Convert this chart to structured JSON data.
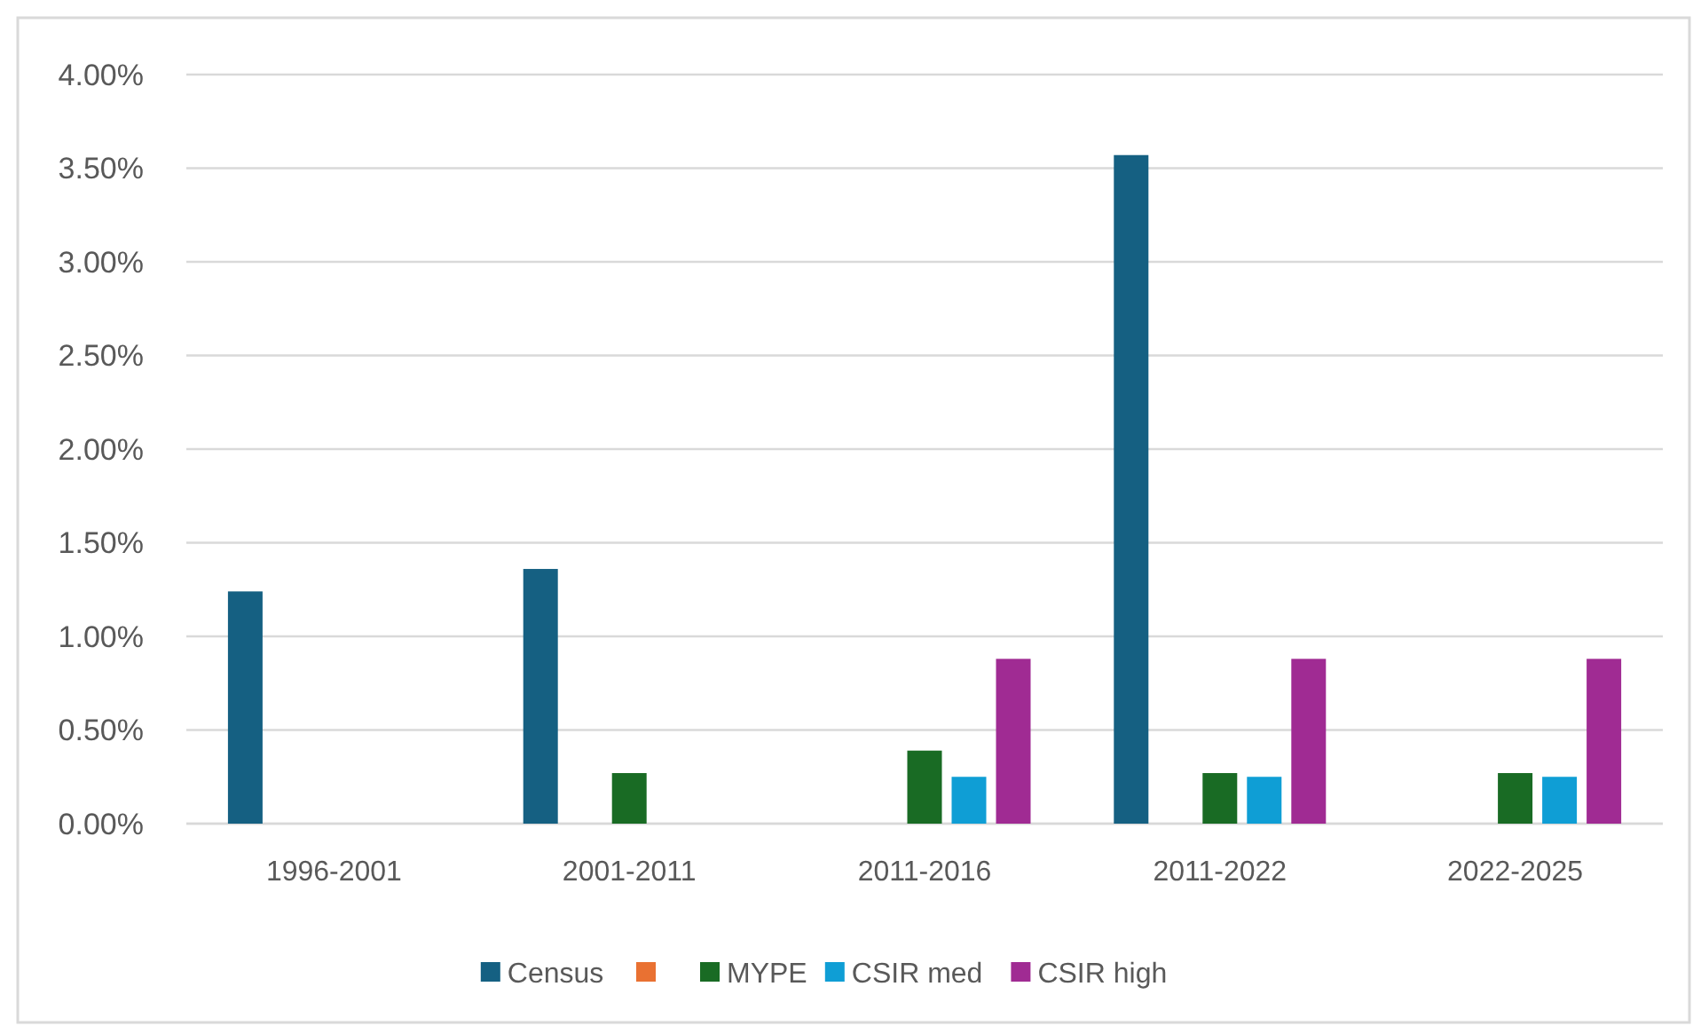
{
  "chart_data": {
    "type": "bar",
    "categories": [
      "1996-2001",
      "2001-2011",
      "2011-2016",
      "2011-2022",
      "2022-2025"
    ],
    "series": [
      {
        "name": "Census",
        "color": "#156082",
        "values": [
          1.24,
          1.36,
          null,
          3.57,
          null
        ]
      },
      {
        "color": "#e97132",
        "values": [
          null,
          null,
          null,
          null,
          null
        ]
      },
      {
        "name": "MYPE",
        "color": "#196b24",
        "values": [
          null,
          0.27,
          0.39,
          0.27,
          0.27
        ]
      },
      {
        "name": "CSIR med",
        "color": "#0f9ed5",
        "values": [
          null,
          null,
          0.25,
          0.25,
          0.25
        ]
      },
      {
        "name": "CSIR high",
        "color": "#a02b93",
        "values": [
          null,
          null,
          0.88,
          0.88,
          0.88
        ]
      }
    ],
    "ylim": [
      0,
      4
    ],
    "yticks": [
      {
        "value": 0,
        "label": "0.00%"
      },
      {
        "value": 0.5,
        "label": "0.50%"
      },
      {
        "value": 1,
        "label": "1.00%"
      },
      {
        "value": 1.5,
        "label": "1.50%"
      },
      {
        "value": 2,
        "label": "2.00%"
      },
      {
        "value": 2.5,
        "label": "2.50%"
      },
      {
        "value": 3,
        "label": "3.00%"
      },
      {
        "value": 3.5,
        "label": "3.50%"
      },
      {
        "value": 4,
        "label": "4.00%"
      }
    ],
    "grid": "y",
    "legend": "bottom"
  }
}
